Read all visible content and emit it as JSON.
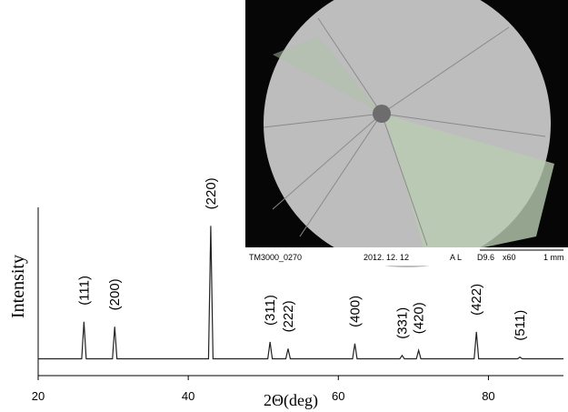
{
  "chart_data": {
    "type": "line",
    "x_label": "2Θ(deg)",
    "y_label": "Intensity",
    "xlim": [
      20,
      90
    ],
    "ylim": [
      0,
      100
    ],
    "xticks": [
      20,
      40,
      60,
      80
    ],
    "color": "#222222",
    "series": [
      {
        "name": null,
        "color": "#222222",
        "x": [
          20,
          25.8,
          26.1,
          26.4,
          29.9,
          30.2,
          30.5,
          42.7,
          43.0,
          43.3,
          50.6,
          50.9,
          51.2,
          53.0,
          53.3,
          53.6,
          61.9,
          62.2,
          62.5,
          68.2,
          68.5,
          68.8,
          70.4,
          70.7,
          71.0,
          78.1,
          78.4,
          78.7,
          83.9,
          84.2,
          84.5,
          90
        ],
        "values": [
          10,
          10,
          32,
          10,
          10,
          29,
          10,
          10,
          89,
          10,
          10,
          20,
          10,
          10,
          16,
          10,
          10,
          19,
          10,
          10,
          12,
          10,
          10,
          15,
          10,
          10,
          26,
          10,
          10,
          11,
          10,
          10
        ]
      }
    ],
    "annotations": [
      {
        "text": "(111)",
        "x": 26.1,
        "y": 32
      },
      {
        "text": "(200)",
        "x": 30.2,
        "y": 29
      },
      {
        "text": "(220)",
        "x": 43.0,
        "y": 89
      },
      {
        "text": "(311)",
        "x": 50.9,
        "y": 20
      },
      {
        "text": "(222)",
        "x": 53.3,
        "y": 16
      },
      {
        "text": "(400)",
        "x": 62.2,
        "y": 19
      },
      {
        "text": "(331)",
        "x": 68.5,
        "y": 12
      },
      {
        "text": "(420)",
        "x": 70.7,
        "y": 15
      },
      {
        "text": "(422)",
        "x": 78.4,
        "y": 26
      },
      {
        "text": "(511)",
        "x": 84.2,
        "y": 11
      }
    ]
  },
  "inset": {
    "caption": [
      "TM3000_0270",
      "2012. 12. 12",
      "A L",
      "D9.6",
      "x60",
      "1 mm"
    ]
  }
}
